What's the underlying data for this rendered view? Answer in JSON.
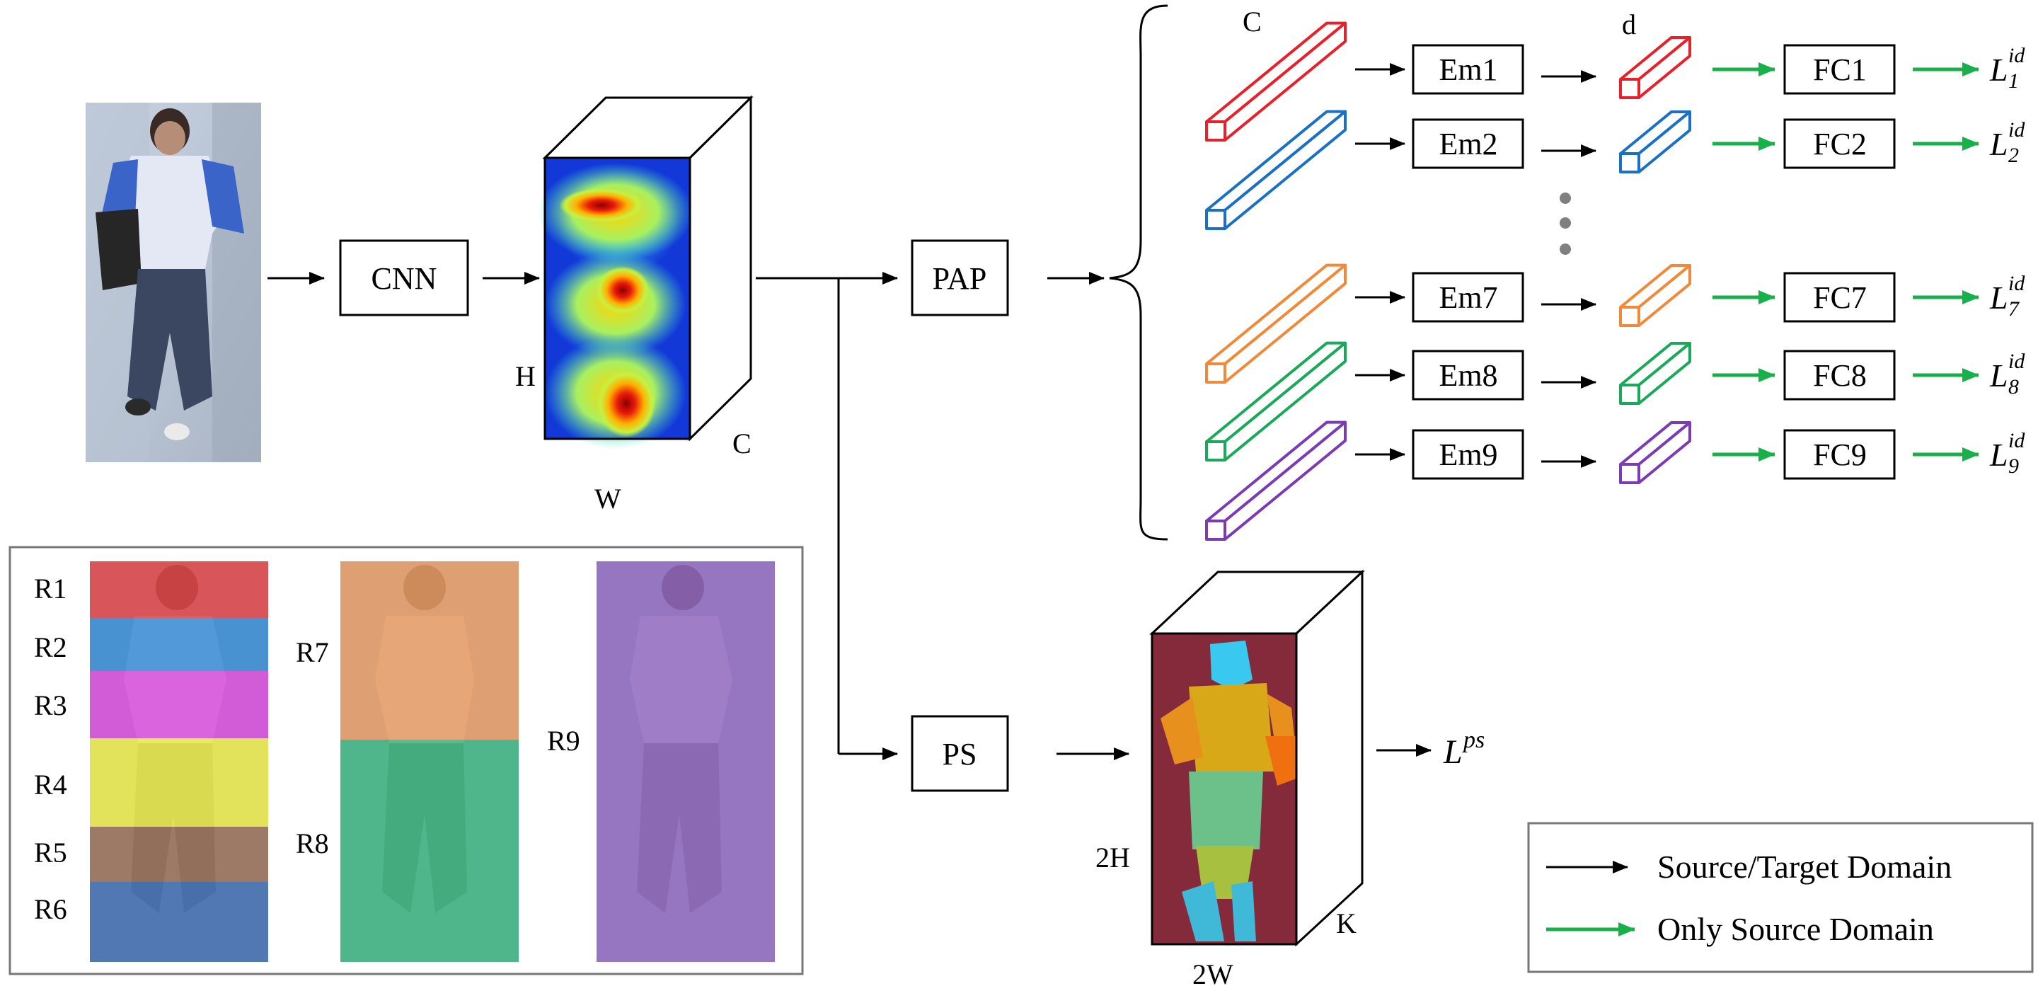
{
  "nodes": {
    "cnn": "CNN",
    "pap": "PAP",
    "ps": "PS",
    "em": [
      "Em1",
      "Em2",
      "Em7",
      "Em8",
      "Em9"
    ],
    "fc": [
      "FC1",
      "FC2",
      "FC7",
      "FC8",
      "FC9"
    ]
  },
  "dims": {
    "h": "H",
    "w": "W",
    "c": "C",
    "c_top": "C",
    "d": "d",
    "two_h": "2H",
    "two_w": "2W",
    "k": "K"
  },
  "losses": {
    "id_base": "L",
    "id_sup": "id",
    "id_subs": [
      "1",
      "2",
      "7",
      "8",
      "9"
    ],
    "ps_base": "L",
    "ps_sup": "ps"
  },
  "regions": {
    "left": [
      "R1",
      "R2",
      "R3",
      "R4",
      "R5",
      "R6"
    ],
    "mid": [
      "R7",
      "R8"
    ],
    "right": [
      "R9"
    ]
  },
  "legend": {
    "source_target": "Source/Target Domain",
    "only_source": "Only Source Domain"
  },
  "colors": {
    "red": "#e8202a",
    "blue": "#1a70c4",
    "orange": "#f08a3a",
    "green": "#1aa85a",
    "purple": "#7a3bb4",
    "arrow_green": "#17b04a"
  }
}
